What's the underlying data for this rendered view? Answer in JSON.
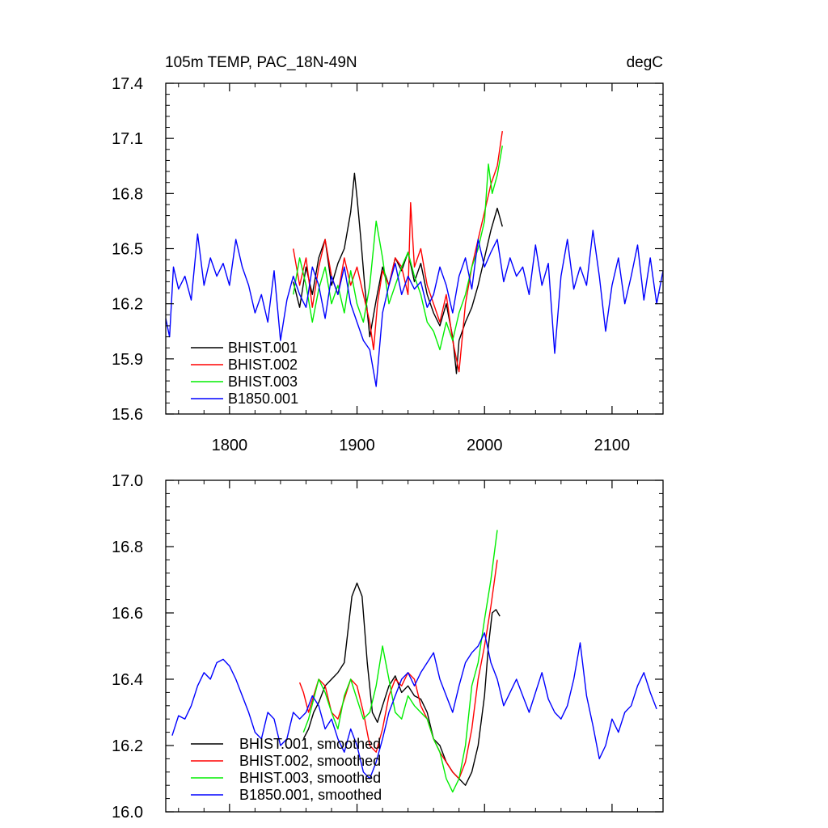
{
  "chart_data": [
    {
      "type": "line",
      "title_left": "105m TEMP, PAC_18N-49N",
      "title_right": "degC",
      "xlim": [
        1750,
        2140
      ],
      "ylim": [
        15.6,
        17.4
      ],
      "xticks": [
        1800,
        1900,
        2000,
        2100
      ],
      "xtick_labels": [
        "1800",
        "1900",
        "2000",
        "2100"
      ],
      "yticks": [
        15.6,
        15.9,
        16.2,
        16.5,
        16.8,
        17.1,
        17.4
      ],
      "ytick_labels": [
        "15.6",
        "15.9",
        "16.2",
        "16.5",
        "16.8",
        "17.1",
        "17.4"
      ],
      "legend_position": "bottom-left",
      "series": [
        {
          "name": "BHIST.001",
          "color": "#000000",
          "x": [
            1850,
            1855,
            1860,
            1865,
            1870,
            1875,
            1880,
            1885,
            1890,
            1895,
            1898,
            1900,
            1903,
            1906,
            1910,
            1915,
            1920,
            1925,
            1930,
            1935,
            1940,
            1945,
            1950,
            1955,
            1960,
            1965,
            1970,
            1975,
            1978,
            1980,
            1985,
            1990,
            1995,
            2000,
            2005,
            2010,
            2014
          ],
          "y": [
            16.32,
            16.18,
            16.4,
            16.25,
            16.45,
            16.55,
            16.3,
            16.42,
            16.5,
            16.7,
            16.91,
            16.78,
            16.55,
            16.3,
            16.02,
            16.22,
            16.4,
            16.3,
            16.45,
            16.38,
            16.48,
            16.32,
            16.42,
            16.25,
            16.15,
            16.08,
            16.2,
            16.02,
            15.82,
            16.0,
            16.1,
            16.18,
            16.3,
            16.45,
            16.6,
            16.72,
            16.62
          ]
        },
        {
          "name": "BHIST.002",
          "color": "#ff0000",
          "x": [
            1850,
            1855,
            1860,
            1865,
            1870,
            1875,
            1880,
            1885,
            1890,
            1895,
            1900,
            1905,
            1910,
            1913,
            1916,
            1920,
            1925,
            1930,
            1935,
            1940,
            1942,
            1945,
            1950,
            1955,
            1960,
            1965,
            1970,
            1975,
            1980,
            1985,
            1990,
            1995,
            2000,
            2005,
            2010,
            2014
          ],
          "y": [
            16.5,
            16.3,
            16.45,
            16.18,
            16.4,
            16.55,
            16.35,
            16.25,
            16.45,
            16.3,
            16.4,
            16.25,
            16.1,
            15.95,
            16.2,
            16.38,
            16.3,
            16.45,
            16.4,
            16.25,
            16.75,
            16.4,
            16.5,
            16.3,
            16.2,
            16.1,
            16.25,
            16.0,
            15.83,
            16.2,
            16.4,
            16.55,
            16.7,
            16.85,
            16.95,
            17.14
          ]
        },
        {
          "name": "BHIST.003",
          "color": "#00ee00",
          "x": [
            1850,
            1855,
            1860,
            1865,
            1870,
            1875,
            1880,
            1885,
            1890,
            1895,
            1900,
            1905,
            1910,
            1915,
            1920,
            1925,
            1930,
            1935,
            1940,
            1945,
            1950,
            1955,
            1960,
            1965,
            1970,
            1975,
            1980,
            1985,
            1990,
            1995,
            2000,
            2003,
            2006,
            2010,
            2014
          ],
          "y": [
            16.25,
            16.45,
            16.3,
            16.1,
            16.28,
            16.4,
            16.2,
            16.3,
            16.15,
            16.38,
            16.2,
            16.1,
            16.3,
            16.65,
            16.45,
            16.2,
            16.3,
            16.4,
            16.48,
            16.35,
            16.25,
            16.1,
            16.05,
            15.95,
            16.1,
            16.0,
            16.15,
            16.25,
            16.4,
            16.5,
            16.65,
            16.96,
            16.8,
            16.9,
            17.06
          ]
        },
        {
          "name": "B1850.001",
          "color": "#0000ff",
          "x": [
            1750,
            1753,
            1756,
            1760,
            1765,
            1770,
            1775,
            1780,
            1785,
            1790,
            1795,
            1800,
            1805,
            1810,
            1815,
            1820,
            1825,
            1830,
            1835,
            1840,
            1845,
            1850,
            1855,
            1860,
            1865,
            1870,
            1875,
            1880,
            1885,
            1890,
            1895,
            1900,
            1905,
            1910,
            1915,
            1920,
            1925,
            1930,
            1935,
            1940,
            1945,
            1950,
            1955,
            1960,
            1965,
            1970,
            1975,
            1980,
            1985,
            1990,
            1995,
            2000,
            2005,
            2010,
            2015,
            2020,
            2025,
            2030,
            2035,
            2040,
            2045,
            2050,
            2055,
            2060,
            2065,
            2070,
            2075,
            2080,
            2085,
            2090,
            2095,
            2100,
            2105,
            2110,
            2115,
            2120,
            2125,
            2130,
            2135,
            2140
          ],
          "y": [
            16.12,
            16.02,
            16.4,
            16.28,
            16.35,
            16.22,
            16.58,
            16.3,
            16.45,
            16.35,
            16.42,
            16.3,
            16.55,
            16.4,
            16.3,
            16.15,
            16.25,
            16.1,
            16.38,
            16.0,
            16.22,
            16.35,
            16.25,
            16.18,
            16.4,
            16.3,
            16.12,
            16.35,
            16.25,
            16.4,
            16.2,
            16.1,
            16.0,
            15.95,
            15.75,
            16.15,
            16.3,
            16.42,
            16.25,
            16.35,
            16.28,
            16.32,
            16.18,
            16.25,
            16.4,
            16.3,
            16.15,
            16.35,
            16.45,
            16.28,
            16.55,
            16.4,
            16.48,
            16.55,
            16.32,
            16.45,
            16.35,
            16.4,
            16.25,
            16.52,
            16.3,
            16.42,
            15.93,
            16.35,
            16.55,
            16.28,
            16.4,
            16.3,
            16.6,
            16.35,
            16.05,
            16.3,
            16.45,
            16.2,
            16.35,
            16.52,
            16.22,
            16.45,
            16.2,
            16.38
          ]
        }
      ]
    },
    {
      "type": "line",
      "xlim": [
        1750,
        2140
      ],
      "ylim": [
        16.0,
        17.0
      ],
      "xticks": [
        1800,
        1900,
        2000,
        2100
      ],
      "yticks": [
        16.0,
        16.2,
        16.4,
        16.6,
        16.8,
        17.0
      ],
      "ytick_labels": [
        "16.0",
        "16.2",
        "16.4",
        "16.6",
        "16.8",
        "17.0"
      ],
      "legend_position": "bottom-left",
      "series": [
        {
          "name": "BHIST.001, smoothed",
          "color": "#000000",
          "x": [
            1858,
            1862,
            1866,
            1870,
            1875,
            1880,
            1885,
            1890,
            1893,
            1896,
            1900,
            1904,
            1908,
            1912,
            1916,
            1920,
            1925,
            1930,
            1935,
            1940,
            1945,
            1950,
            1955,
            1960,
            1965,
            1970,
            1975,
            1980,
            1985,
            1990,
            1995,
            2000,
            2003,
            2006,
            2009,
            2012
          ],
          "y": [
            16.22,
            16.25,
            16.3,
            16.33,
            16.38,
            16.4,
            16.42,
            16.45,
            16.55,
            16.65,
            16.69,
            16.65,
            16.45,
            16.3,
            16.27,
            16.32,
            16.38,
            16.41,
            16.36,
            16.38,
            16.35,
            16.34,
            16.3,
            16.22,
            16.2,
            16.15,
            16.12,
            16.1,
            16.08,
            16.12,
            16.2,
            16.35,
            16.5,
            16.6,
            16.61,
            16.59
          ]
        },
        {
          "name": "BHIST.002, smoothed",
          "color": "#ff0000",
          "x": [
            1855,
            1858,
            1862,
            1866,
            1870,
            1875,
            1880,
            1885,
            1890,
            1895,
            1900,
            1905,
            1910,
            1915,
            1920,
            1925,
            1930,
            1935,
            1940,
            1945,
            1950,
            1955,
            1960,
            1965,
            1970,
            1975,
            1980,
            1985,
            1990,
            1995,
            2000,
            2005,
            2010
          ],
          "y": [
            16.39,
            16.36,
            16.3,
            16.35,
            16.4,
            16.38,
            16.3,
            16.28,
            16.34,
            16.4,
            16.38,
            16.3,
            16.2,
            16.18,
            16.25,
            16.35,
            16.4,
            16.38,
            16.42,
            16.4,
            16.32,
            16.28,
            16.22,
            16.18,
            16.15,
            16.12,
            16.1,
            16.15,
            16.25,
            16.4,
            16.5,
            16.62,
            16.76
          ]
        },
        {
          "name": "BHIST.003, smoothed",
          "color": "#00ee00",
          "x": [
            1858,
            1862,
            1866,
            1870,
            1875,
            1880,
            1885,
            1890,
            1895,
            1900,
            1905,
            1910,
            1915,
            1920,
            1925,
            1930,
            1935,
            1940,
            1945,
            1950,
            1955,
            1960,
            1965,
            1970,
            1975,
            1980,
            1985,
            1990,
            1995,
            2000,
            2005,
            2010
          ],
          "y": [
            16.24,
            16.28,
            16.34,
            16.4,
            16.36,
            16.3,
            16.25,
            16.35,
            16.4,
            16.34,
            16.28,
            16.3,
            16.38,
            16.5,
            16.4,
            16.3,
            16.28,
            16.35,
            16.32,
            16.3,
            16.28,
            16.22,
            16.18,
            16.1,
            16.06,
            16.1,
            16.2,
            16.38,
            16.45,
            16.58,
            16.7,
            16.85
          ]
        },
        {
          "name": "B1850.001, smoothed",
          "color": "#0000ff",
          "x": [
            1755,
            1760,
            1765,
            1770,
            1775,
            1780,
            1785,
            1790,
            1795,
            1800,
            1805,
            1810,
            1815,
            1820,
            1825,
            1830,
            1835,
            1840,
            1845,
            1850,
            1855,
            1860,
            1865,
            1870,
            1875,
            1880,
            1885,
            1890,
            1895,
            1900,
            1905,
            1910,
            1915,
            1920,
            1925,
            1930,
            1935,
            1940,
            1945,
            1950,
            1955,
            1960,
            1965,
            1970,
            1975,
            1980,
            1985,
            1990,
            1995,
            2000,
            2005,
            2010,
            2015,
            2020,
            2025,
            2030,
            2035,
            2040,
            2045,
            2050,
            2055,
            2060,
            2065,
            2070,
            2075,
            2080,
            2085,
            2090,
            2095,
            2100,
            2105,
            2110,
            2115,
            2120,
            2125,
            2130,
            2135
          ],
          "y": [
            16.23,
            16.29,
            16.28,
            16.32,
            16.38,
            16.42,
            16.4,
            16.45,
            16.46,
            16.44,
            16.4,
            16.35,
            16.3,
            16.24,
            16.22,
            16.3,
            16.28,
            16.2,
            16.22,
            16.3,
            16.28,
            16.3,
            16.35,
            16.32,
            16.25,
            16.28,
            16.22,
            16.18,
            16.25,
            16.2,
            16.12,
            16.1,
            16.15,
            16.22,
            16.3,
            16.35,
            16.4,
            16.42,
            16.38,
            16.42,
            16.45,
            16.48,
            16.4,
            16.35,
            16.3,
            16.38,
            16.45,
            16.48,
            16.5,
            16.54,
            16.45,
            16.4,
            16.32,
            16.36,
            16.4,
            16.35,
            16.3,
            16.36,
            16.42,
            16.34,
            16.3,
            16.28,
            16.32,
            16.4,
            16.51,
            16.35,
            16.26,
            16.16,
            16.2,
            16.28,
            16.24,
            16.3,
            16.32,
            16.38,
            16.42,
            16.36,
            16.31
          ]
        }
      ]
    }
  ]
}
